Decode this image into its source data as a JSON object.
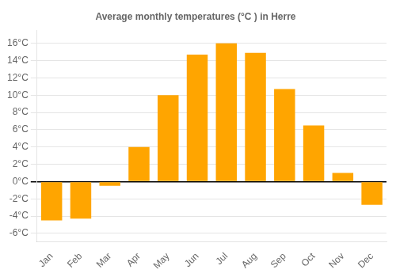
{
  "chart_data": {
    "type": "bar",
    "title": "Average monthly temperatures (°C ) in Herre",
    "categories": [
      "Jan",
      "Feb",
      "Mar",
      "Apr",
      "May",
      "Jun",
      "Jul",
      "Aug",
      "Sep",
      "Oct",
      "Nov",
      "Dec"
    ],
    "values": [
      -4.5,
      -4.3,
      -0.5,
      4.0,
      10.0,
      14.7,
      16.0,
      14.9,
      10.7,
      6.5,
      1.0,
      -2.7
    ],
    "color": "#FFA500",
    "ylim": [
      -7,
      17.5
    ],
    "yticks": [
      {
        "value": -6,
        "label": "-6°C"
      },
      {
        "value": -4,
        "label": "-4°C"
      },
      {
        "value": -2,
        "label": "-2°C"
      },
      {
        "value": 0,
        "label": "0°C"
      },
      {
        "value": 2,
        "label": "2°C"
      },
      {
        "value": 4,
        "label": "4°C"
      },
      {
        "value": 6,
        "label": "6°C"
      },
      {
        "value": 8,
        "label": "8°C"
      },
      {
        "value": 10,
        "label": "10°C"
      },
      {
        "value": 12,
        "label": "12°C"
      },
      {
        "value": 14,
        "label": "14°C"
      },
      {
        "value": 16,
        "label": "16°C"
      }
    ],
    "grid": true
  }
}
